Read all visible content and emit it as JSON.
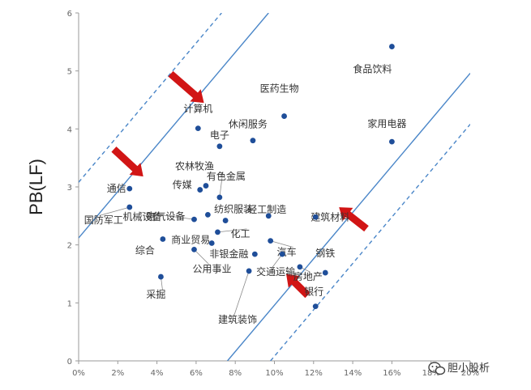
{
  "chart_data": {
    "type": "scatter",
    "ylabel": "PB(LF)",
    "xlim": [
      0,
      0.2
    ],
    "ylim": [
      0,
      6
    ],
    "x_ticks": [
      {
        "v": 0.0,
        "label": "0%"
      },
      {
        "v": 0.02,
        "label": "2%"
      },
      {
        "v": 0.04,
        "label": "4%"
      },
      {
        "v": 0.06,
        "label": "6%"
      },
      {
        "v": 0.08,
        "label": "8%"
      },
      {
        "v": 0.1,
        "label": "10%"
      },
      {
        "v": 0.12,
        "label": "12%"
      },
      {
        "v": 0.14,
        "label": "14%"
      },
      {
        "v": 0.16,
        "label": "16%"
      },
      {
        "v": 0.18,
        "label": "18%"
      },
      {
        "v": 0.2,
        "label": "20%"
      }
    ],
    "y_ticks": [
      {
        "v": 0,
        "label": "0"
      },
      {
        "v": 1,
        "label": "1"
      },
      {
        "v": 2,
        "label": "2"
      },
      {
        "v": 3,
        "label": "3"
      },
      {
        "v": 4,
        "label": "4"
      },
      {
        "v": 5,
        "label": "5"
      },
      {
        "v": 6,
        "label": "6"
      }
    ],
    "colors": {
      "point": "#1f4e99",
      "line": "#4a86c8",
      "arrow": "#d11515"
    },
    "points": [
      {
        "label": "食品饮料",
        "x": 0.16,
        "y": 5.42
      },
      {
        "label": "家用电器",
        "x": 0.16,
        "y": 3.78
      },
      {
        "label": "医药生物",
        "x": 0.105,
        "y": 4.22
      },
      {
        "label": "计算机",
        "x": 0.061,
        "y": 4.01
      },
      {
        "label": "电子",
        "x": 0.072,
        "y": 3.7
      },
      {
        "label": "休闲服务",
        "x": 0.089,
        "y": 3.8
      },
      {
        "label": "农林牧渔",
        "x": 0.065,
        "y": 3.02
      },
      {
        "label": "传媒",
        "x": 0.062,
        "y": 2.95
      },
      {
        "label": "有色金属",
        "x": 0.072,
        "y": 2.82
      },
      {
        "label": "通信",
        "x": 0.026,
        "y": 2.97
      },
      {
        "label": "机械设备",
        "x": 0.059,
        "y": 2.44
      },
      {
        "label": "国防军工",
        "x": 0.026,
        "y": 2.65
      },
      {
        "label": "电气设备",
        "x": 0.066,
        "y": 2.52
      },
      {
        "label": "纺织服装",
        "x": 0.075,
        "y": 2.42
      },
      {
        "label": "轻工制造",
        "x": 0.097,
        "y": 2.5
      },
      {
        "label": "建筑材料",
        "x": 0.121,
        "y": 2.48
      },
      {
        "label": "商业贸易",
        "x": 0.068,
        "y": 2.03
      },
      {
        "label": "化工",
        "x": 0.071,
        "y": 2.22
      },
      {
        "label": "汽车",
        "x": 0.098,
        "y": 2.07
      },
      {
        "label": "综合",
        "x": 0.043,
        "y": 2.1
      },
      {
        "label": "非银金融",
        "x": 0.09,
        "y": 1.84
      },
      {
        "label": "公用事业",
        "x": 0.059,
        "y": 1.92
      },
      {
        "label": "交通运输",
        "x": 0.104,
        "y": 1.84
      },
      {
        "label": "房地产",
        "x": 0.113,
        "y": 1.62
      },
      {
        "label": "钢铁",
        "x": 0.126,
        "y": 1.52
      },
      {
        "label": "建筑装饰",
        "x": 0.087,
        "y": 1.55
      },
      {
        "label": "采掘",
        "x": 0.042,
        "y": 1.45
      },
      {
        "label": "银行",
        "x": 0.121,
        "y": 0.94
      }
    ],
    "bands": [
      {
        "style": "dashed",
        "points": [
          [
            0.0,
            3.08
          ],
          [
            0.073,
            6.0
          ]
        ]
      },
      {
        "style": "solid",
        "points": [
          [
            0.0,
            2.12
          ],
          [
            0.097,
            6.0
          ]
        ]
      },
      {
        "style": "solid",
        "points": [
          [
            0.076,
            0.0
          ],
          [
            0.2,
            4.96
          ]
        ]
      },
      {
        "style": "dashed",
        "points": [
          [
            0.098,
            0.0
          ],
          [
            0.2,
            4.08
          ]
        ]
      }
    ],
    "arrows": [
      {
        "from": [
          0.047,
          4.95
        ],
        "to": [
          0.064,
          4.45
        ]
      },
      {
        "from": [
          0.018,
          3.65
        ],
        "to": [
          0.033,
          3.18
        ]
      },
      {
        "from": [
          0.147,
          2.28
        ],
        "to": [
          0.133,
          2.65
        ]
      },
      {
        "from": [
          0.117,
          1.13
        ],
        "to": [
          0.106,
          1.5
        ]
      }
    ]
  },
  "watermark": {
    "text": "胆小股析"
  }
}
